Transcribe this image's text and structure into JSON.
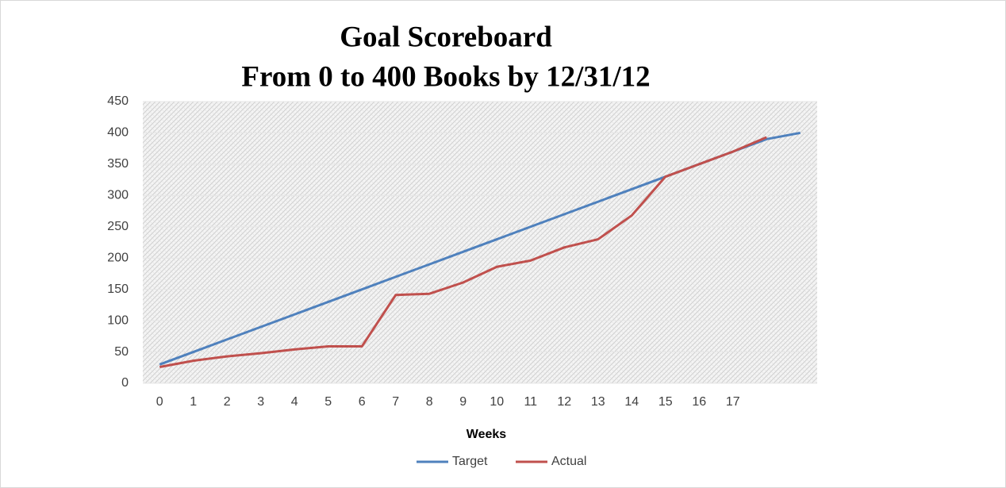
{
  "chart_data": {
    "type": "line",
    "title": [
      "Goal Scoreboard",
      "From 0 to 400 Books by 12/31/12"
    ],
    "x_label": "Weeks",
    "categories": [
      0,
      1,
      2,
      3,
      4,
      5,
      6,
      7,
      8,
      9,
      10,
      11,
      12,
      13,
      14,
      15,
      16,
      17,
      null,
      null
    ],
    "series": [
      {
        "name": "Target",
        "color": "#4f81bd",
        "values": [
          30,
          50,
          70,
          90,
          110,
          130,
          150,
          170,
          190,
          210,
          230,
          250,
          270,
          290,
          310,
          330,
          350,
          370,
          390,
          400
        ]
      },
      {
        "name": "Actual",
        "color": "#c0504d",
        "values": [
          26,
          36,
          43,
          48,
          54,
          59,
          59,
          141,
          143,
          161,
          186,
          196,
          217,
          230,
          268,
          330,
          350,
          370,
          393,
          null
        ]
      }
    ],
    "ylim": [
      0,
      450
    ],
    "yticks": [
      0,
      50,
      100,
      150,
      200,
      250,
      300,
      350,
      400,
      450
    ],
    "legend": "bottom"
  }
}
